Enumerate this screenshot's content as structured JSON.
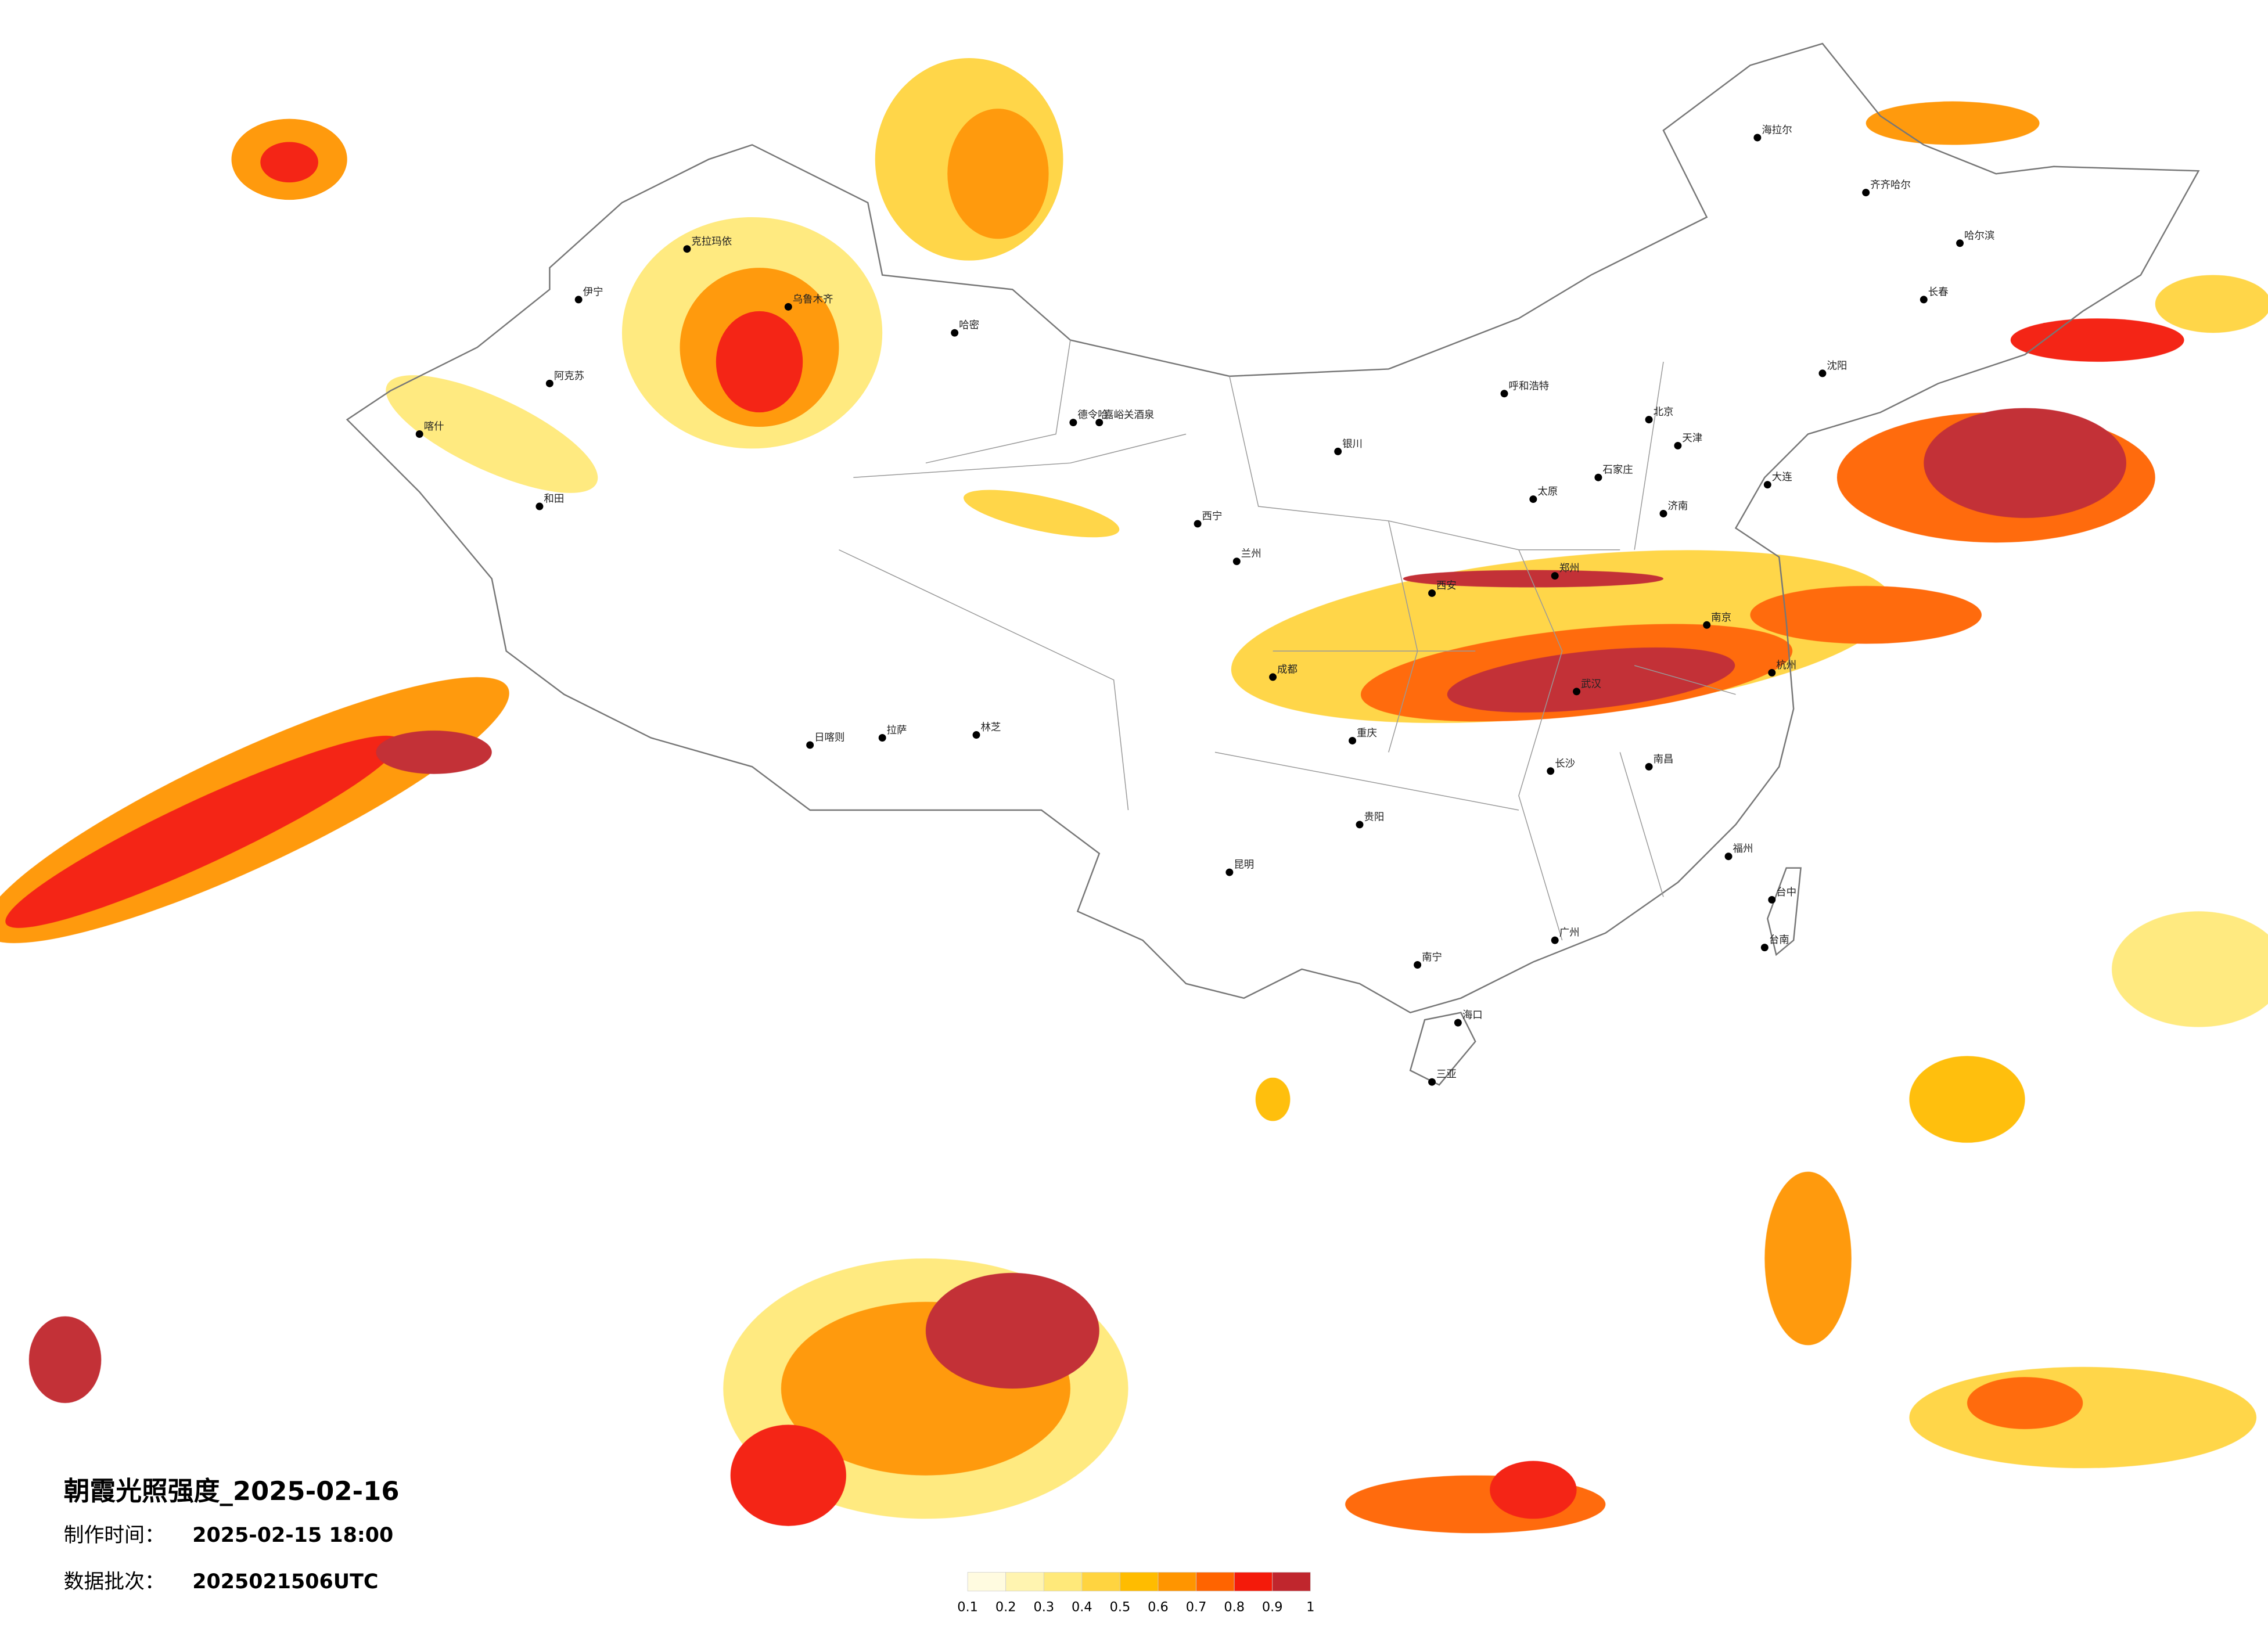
{
  "header": {
    "title": "朝霞光照强度_2025-02-16",
    "made_label": "制作时间：",
    "made_time": "2025-02-15 18:00",
    "batch_label": "数据批次：",
    "batch": "2025021506UTC"
  },
  "legend": {
    "ticks": [
      0.1,
      0.2,
      0.3,
      0.4,
      0.5,
      0.6,
      0.7,
      0.8,
      0.9,
      1
    ],
    "colors": [
      "#fffbe0",
      "#fff4b0",
      "#ffe97a",
      "#ffd440",
      "#ffbc00",
      "#ff9500",
      "#ff6400",
      "#f41a0a",
      "#c0262d"
    ]
  },
  "map": {
    "cities": [
      "海拉尔",
      "齐齐哈尔",
      "哈尔滨",
      "长春",
      "沈阳",
      "大连",
      "北京",
      "天津",
      "石家庄",
      "呼和浩特",
      "太原",
      "济南",
      "郑州",
      "西安",
      "银川",
      "兰州",
      "西宁",
      "德令哈",
      "嘉峪关酒泉",
      "哈密",
      "乌鲁木齐",
      "克拉玛依",
      "伊宁",
      "阿克苏",
      "喀什",
      "和田",
      "拉萨",
      "日喀则",
      "林芝",
      "成都",
      "重庆",
      "贵阳",
      "昆明",
      "南宁",
      "广州",
      "福州",
      "台中",
      "台南",
      "杭州",
      "南京",
      "武汉",
      "长沙",
      "南昌",
      "海口",
      "三亚"
    ]
  }
}
